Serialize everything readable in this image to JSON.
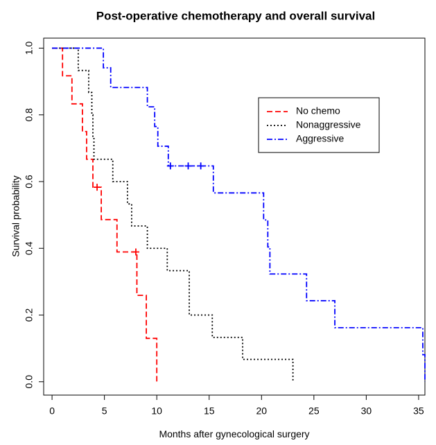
{
  "chart_data": {
    "type": "survival",
    "title": "Post-operative chemotherapy and overall survival",
    "x_label": "Months after gynecological surgery",
    "y_label": "Survival probability",
    "xlim": [
      -0.8,
      35.6
    ],
    "ylim": [
      -0.04,
      1.03
    ],
    "xticks": [
      0,
      5,
      10,
      15,
      20,
      25,
      30,
      35
    ],
    "yticks": [
      {
        "value": 0,
        "label": "0.0"
      },
      {
        "value": 0.2,
        "label": "0.2"
      },
      {
        "value": 0.4,
        "label": "0.4"
      },
      {
        "value": 0.6,
        "label": "0.6"
      },
      {
        "value": 0.8,
        "label": "0.8"
      },
      {
        "value": 1,
        "label": "1.0"
      }
    ],
    "legend": "upper right",
    "series": [
      {
        "name": "No chemo",
        "color": "#ff0000",
        "linestyle": "dashed",
        "x": [
          0,
          1.0,
          1.9,
          2.9,
          3.3,
          3.9,
          4.7,
          6.2,
          8.1,
          9.0,
          10.0
        ],
        "values": [
          1,
          0.917,
          0.833,
          0.75,
          0.667,
          0.583,
          0.486,
          0.389,
          0.259,
          0.13,
          0
        ],
        "censored_x": [
          4.3,
          8.0
        ],
        "censored_values": [
          0.583,
          0.389
        ]
      },
      {
        "name": "Nonaggressive",
        "color": "#000000",
        "linestyle": "dotted",
        "x": [
          0,
          2.5,
          3.5,
          3.8,
          3.9,
          4.0,
          5.8,
          7.2,
          7.6,
          9.1,
          11.0,
          13.1,
          15.3,
          18.2,
          23.0
        ],
        "values": [
          1,
          0.933,
          0.867,
          0.8,
          0.733,
          0.667,
          0.6,
          0.533,
          0.467,
          0.4,
          0.333,
          0.2,
          0.133,
          0.067,
          0
        ],
        "censored_x": [],
        "censored_values": []
      },
      {
        "name": "Aggressive",
        "color": "#0000ff",
        "linestyle": "dashdot",
        "x": [
          0,
          4.9,
          5.6,
          9.1,
          9.8,
          10.1,
          11.1,
          15.4,
          20.2,
          20.6,
          20.8,
          24.3,
          27.0,
          35.4,
          35.6
        ],
        "values": [
          1,
          0.941,
          0.882,
          0.824,
          0.765,
          0.706,
          0.647,
          0.566,
          0.485,
          0.404,
          0.323,
          0.243,
          0.162,
          0.081,
          0
        ],
        "censored_x": [
          11.3,
          13.0,
          14.2
        ],
        "censored_values": [
          0.647,
          0.647,
          0.647
        ]
      }
    ]
  }
}
